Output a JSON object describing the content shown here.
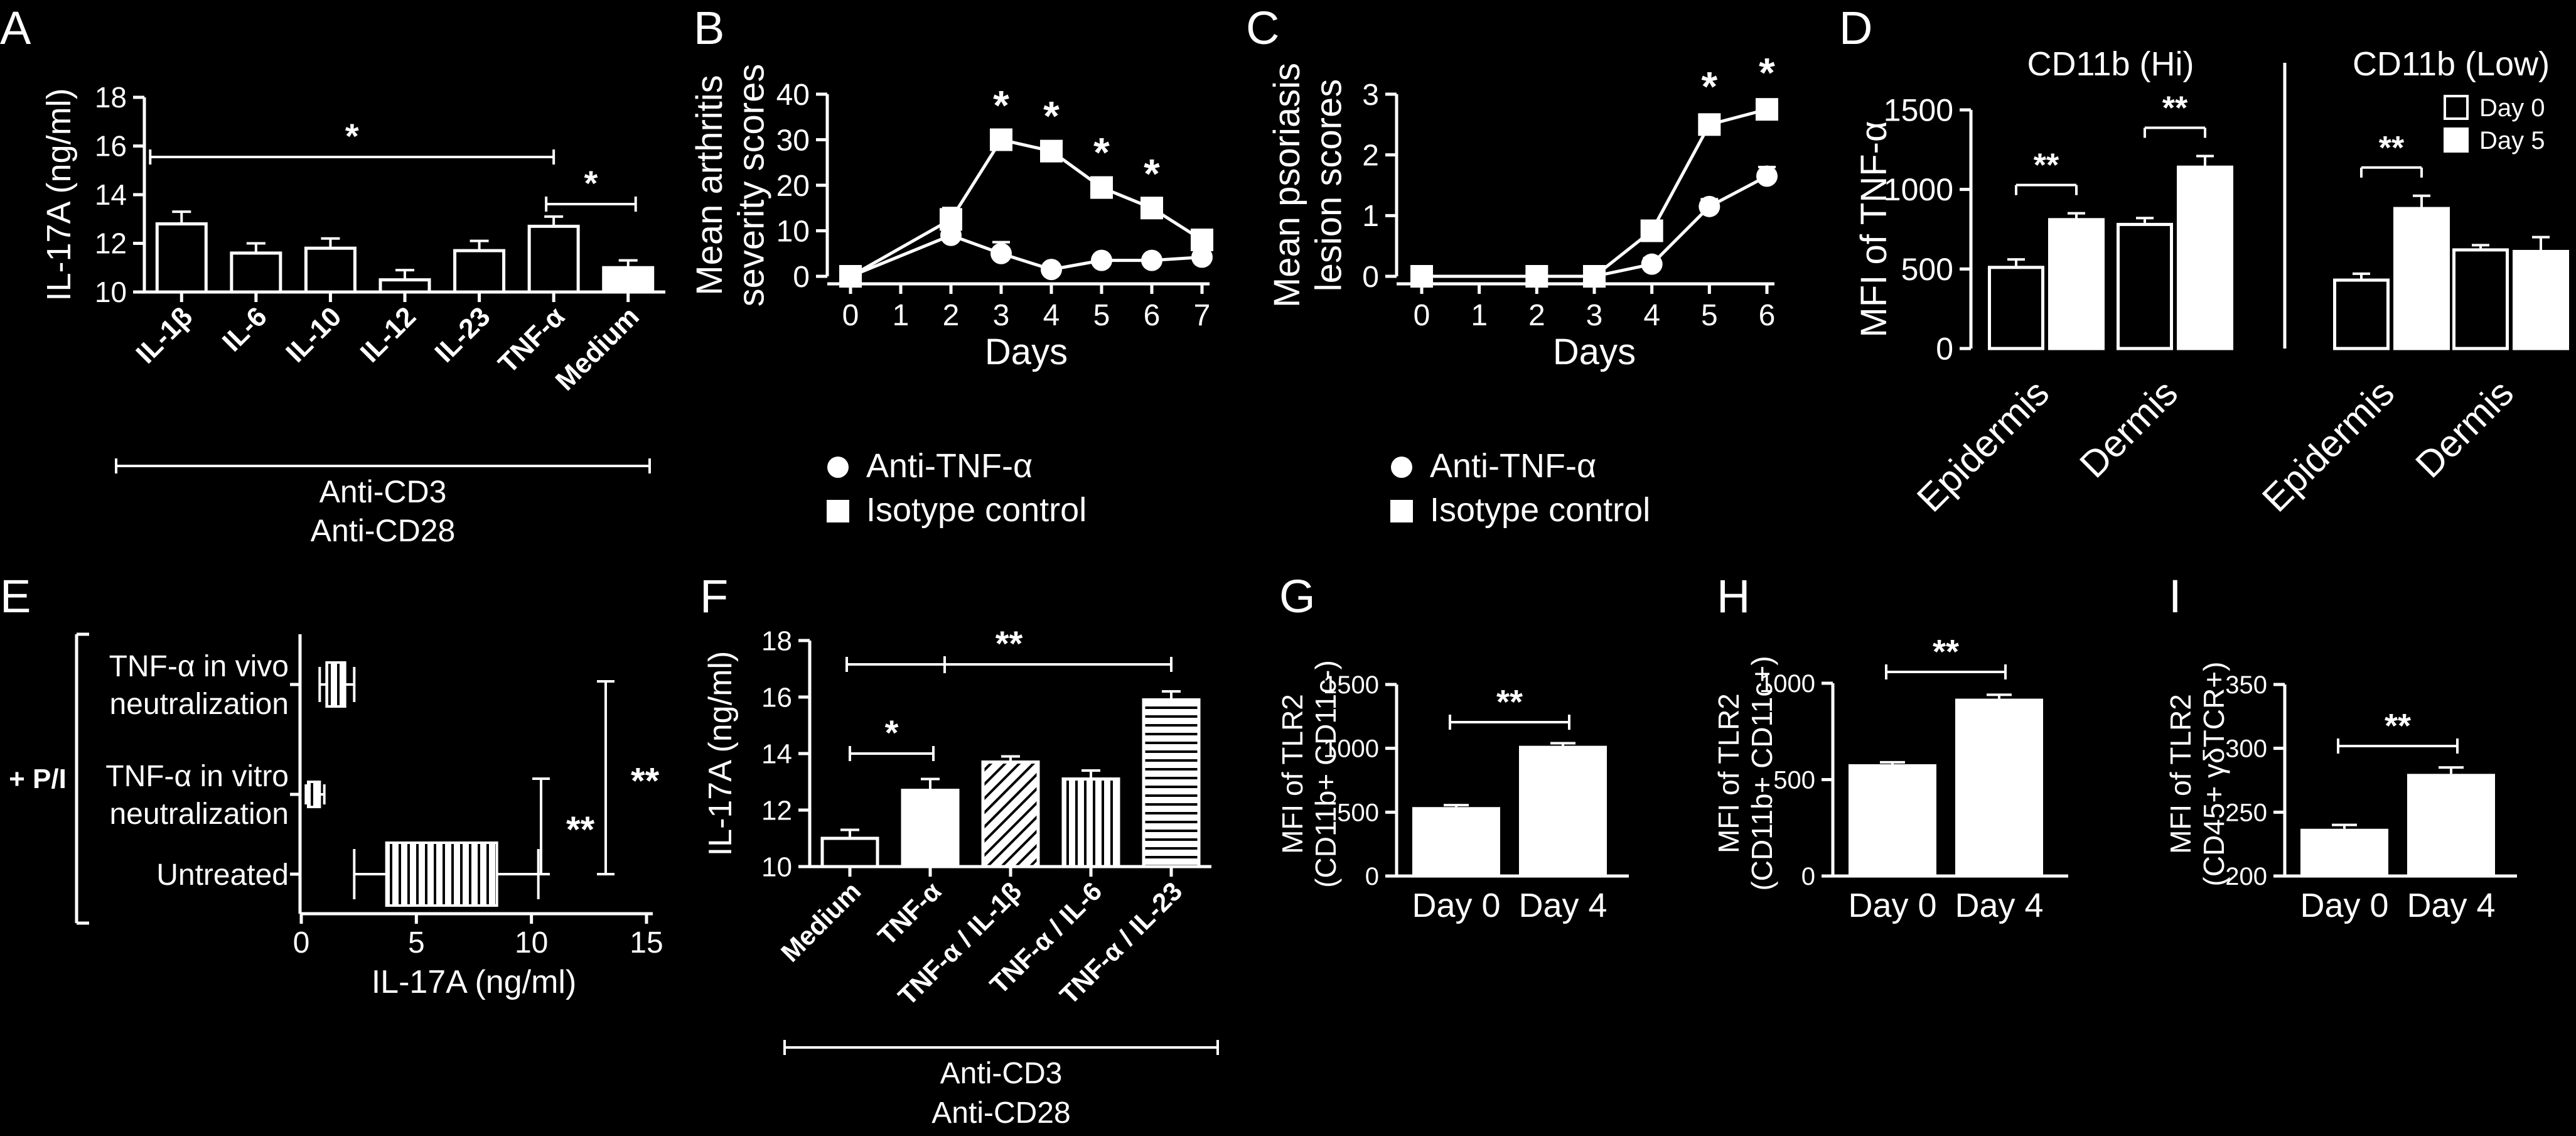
{
  "figure": {
    "background": "#000000",
    "foreground": "#ffffff",
    "panel_letters": [
      "A",
      "B",
      "C",
      "D",
      "E",
      "F",
      "G",
      "H",
      "I"
    ]
  },
  "chart_data": [
    {
      "panel": "A",
      "type": "bar",
      "orientation": "vertical",
      "ylabel": "IL-17A (ng/ml)",
      "ylim": [
        10,
        18
      ],
      "yticks": [
        10,
        12,
        14,
        16,
        18
      ],
      "categories": [
        "IL-1β",
        "IL-6",
        "IL-10",
        "IL-12",
        "IL-23",
        "TNF-α",
        "Medium"
      ],
      "values": [
        12.8,
        11.6,
        11.8,
        10.5,
        11.7,
        12.7,
        11.0
      ],
      "errors": [
        0.5,
        0.4,
        0.4,
        0.4,
        0.4,
        0.4,
        0.3
      ],
      "fills": [
        "open",
        "open",
        "open",
        "open",
        "open",
        "open",
        "filled"
      ],
      "bold_tick_labels": true,
      "significance": [
        {
          "from": 0,
          "to": 5,
          "label": "*"
        },
        {
          "from": 5,
          "to": 6,
          "label": "*"
        }
      ],
      "group_labels": [
        "Anti-CD3",
        "Anti-CD28"
      ]
    },
    {
      "panel": "B",
      "type": "line",
      "xlabel": "Days",
      "ylabel": [
        "Mean arthritis",
        "severity scores"
      ],
      "xlim": [
        0,
        7
      ],
      "ylim": [
        0,
        40
      ],
      "xticks": [
        0,
        1,
        2,
        3,
        4,
        5,
        6,
        7
      ],
      "yticks": [
        0,
        10,
        20,
        30,
        40
      ],
      "series": [
        {
          "name": "Anti-TNF-α",
          "marker": "circle",
          "x": [
            0,
            2,
            3,
            4,
            5,
            6,
            7
          ],
          "y": [
            0,
            9,
            5,
            1.5,
            3.5,
            3.5,
            4.2
          ],
          "errors": [
            0,
            1,
            2.5,
            1,
            0.8,
            0.8,
            0.8
          ]
        },
        {
          "name": "Isotype control",
          "marker": "square",
          "x": [
            0,
            2,
            3,
            4,
            5,
            6,
            7
          ],
          "y": [
            0,
            12.5,
            30,
            27.5,
            19.5,
            15,
            8
          ],
          "errors": [
            0,
            2.5,
            0.8,
            1,
            1,
            0.8,
            0.8
          ]
        }
      ],
      "annotations": [
        {
          "x": 3,
          "label": "*"
        },
        {
          "x": 4,
          "label": "*"
        },
        {
          "x": 5,
          "label": "*"
        },
        {
          "x": 6,
          "label": "*"
        }
      ]
    },
    {
      "panel": "C",
      "type": "line",
      "xlabel": "Days",
      "ylabel": [
        "Mean psoriasis",
        "lesion scores"
      ],
      "xlim": [
        0,
        6
      ],
      "ylim": [
        0,
        3
      ],
      "xticks": [
        0,
        1,
        2,
        3,
        4,
        5,
        6
      ],
      "yticks": [
        0,
        1,
        2,
        3
      ],
      "series": [
        {
          "name": "Anti-TNF-α",
          "marker": "circle",
          "x": [
            0,
            2,
            3,
            4,
            5,
            6
          ],
          "y": [
            0,
            0,
            0,
            0.2,
            1.15,
            1.65
          ],
          "errors": [
            0,
            0,
            0,
            0.1,
            0.12,
            0.15
          ]
        },
        {
          "name": "Isotype control",
          "marker": "square",
          "x": [
            0,
            2,
            3,
            4,
            5,
            6
          ],
          "y": [
            0,
            0,
            0,
            0.75,
            2.5,
            2.75
          ],
          "errors": [
            0,
            0,
            0,
            0.08,
            0.12,
            0.1
          ]
        }
      ],
      "annotations": [
        {
          "x": 5,
          "label": "*"
        },
        {
          "x": 6,
          "label": "*"
        }
      ]
    },
    {
      "panel": "D",
      "type": "bar",
      "orientation": "vertical",
      "ylabel": "MFI of TNF-α",
      "ylim": [
        0,
        1500
      ],
      "yticks": [
        0,
        500,
        1000,
        1500
      ],
      "groups": [
        "Epidermis",
        "Dermis",
        "Epidermis",
        "Dermis"
      ],
      "sections": [
        {
          "title": "CD11b (Hi)",
          "groups": [
            0,
            1
          ]
        },
        {
          "title": "CD11b (Low)",
          "groups": [
            2,
            3
          ]
        }
      ],
      "series": [
        {
          "name": "Day 0",
          "fill": "open",
          "values": [
            510,
            780,
            430,
            620
          ],
          "errors": [
            50,
            40,
            40,
            30
          ]
        },
        {
          "name": "Day 5",
          "fill": "filled",
          "values": [
            810,
            1140,
            880,
            610
          ],
          "errors": [
            40,
            70,
            80,
            90
          ]
        }
      ],
      "significance": [
        {
          "group": 0,
          "label": "**"
        },
        {
          "group": 1,
          "label": "**"
        },
        {
          "group": 2,
          "label": "**"
        }
      ],
      "legend": "top-right"
    },
    {
      "panel": "E",
      "type": "boxplot",
      "orientation": "horizontal",
      "xlabel": "IL-17A (ng/ml)",
      "xlim": [
        0,
        15
      ],
      "xticks": [
        0,
        5,
        10,
        15
      ],
      "side_label": "+ P/I",
      "categories": [
        {
          "label": [
            "TNF-α in vivo",
            "neutralization"
          ],
          "min": 0.8,
          "q1": 1.1,
          "q3": 1.9,
          "max": 2.3,
          "hatch": "vertical"
        },
        {
          "label": [
            "TNF-α in vitro",
            "neutralization"
          ],
          "min": 0.2,
          "q1": 0.3,
          "q3": 0.8,
          "max": 1.0,
          "hatch": "vertical"
        },
        {
          "label": [
            "Untreated"
          ],
          "min": 2.3,
          "q1": 3.7,
          "q3": 8.5,
          "max": 10.3,
          "hatch": "vertical"
        }
      ],
      "significance": [
        {
          "from": 1,
          "to": 2,
          "label": "**"
        },
        {
          "from": 0,
          "to": 2,
          "label": "**"
        }
      ]
    },
    {
      "panel": "F",
      "type": "bar",
      "orientation": "vertical",
      "ylabel": "IL-17A (ng/ml)",
      "ylim": [
        10,
        18
      ],
      "yticks": [
        10,
        12,
        14,
        16,
        18
      ],
      "categories": [
        "Medium",
        "TNF-α",
        "TNF-α / IL-1β",
        "TNF-α / IL-6",
        "TNF-α  / IL-23"
      ],
      "values": [
        11.0,
        12.7,
        13.7,
        13.1,
        15.9
      ],
      "errors": [
        0.3,
        0.4,
        0.2,
        0.3,
        0.3
      ],
      "fills": [
        "open",
        "filled",
        "diagonal",
        "vertical",
        "horizontal"
      ],
      "bold_tick_labels": true,
      "significance": [
        {
          "from": 0,
          "to": 1,
          "label": "*"
        },
        {
          "from": 0,
          "to": 4,
          "label": "**"
        }
      ],
      "group_labels": [
        "Anti-CD3",
        "Anti-CD28"
      ]
    },
    {
      "panel": "G",
      "type": "bar",
      "orientation": "vertical",
      "ylabel": [
        "MFI of TLR2",
        "(CD11b+ CD11c-)"
      ],
      "ylim": [
        0,
        1500
      ],
      "yticks": [
        0,
        500,
        1000,
        1500
      ],
      "categories": [
        "Day 0",
        "Day 4"
      ],
      "values": [
        540,
        1020
      ],
      "errors": [
        15,
        20
      ],
      "significance": [
        {
          "from": 0,
          "to": 1,
          "label": "**"
        }
      ]
    },
    {
      "panel": "H",
      "type": "bar",
      "orientation": "vertical",
      "ylabel": [
        "MFI of TLR2",
        "(CD11b+ CD11c+)"
      ],
      "ylim": [
        0,
        1000
      ],
      "yticks": [
        0,
        500,
        1000
      ],
      "categories": [
        "Day 0",
        "Day 4"
      ],
      "values": [
        580,
        920
      ],
      "errors": [
        10,
        20
      ],
      "significance": [
        {
          "from": 0,
          "to": 1,
          "label": "**"
        }
      ]
    },
    {
      "panel": "I",
      "type": "bar",
      "orientation": "vertical",
      "ylabel": [
        "MFI of TLR2",
        "(CD45+ γδTCR+)"
      ],
      "ylim": [
        200,
        350
      ],
      "yticks": [
        200,
        250,
        300,
        350
      ],
      "categories": [
        "Day 0",
        "Day 4"
      ],
      "values": [
        237,
        280
      ],
      "errors": [
        3,
        5
      ],
      "significance": [
        {
          "from": 0,
          "to": 1,
          "label": "**"
        }
      ]
    }
  ]
}
